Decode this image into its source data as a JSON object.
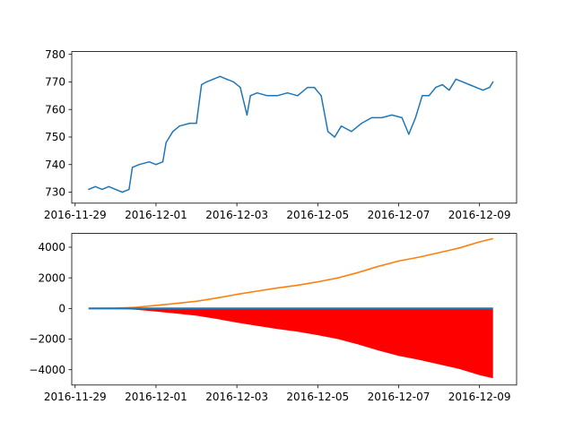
{
  "chart_data": [
    {
      "type": "line",
      "title": "",
      "xlabel": "",
      "ylabel": "",
      "x_start": "2016-11-29T08:00",
      "x_end": "2016-12-09T08:00",
      "xlim": [
        "2016-11-28T22:00",
        "2016-12-09T22:00"
      ],
      "ylim": [
        726,
        781
      ],
      "x_ticks": [
        "2016-11-29",
        "2016-12-01",
        "2016-12-03",
        "2016-12-05",
        "2016-12-07",
        "2016-12-09"
      ],
      "y_ticks": [
        730,
        740,
        750,
        760,
        770,
        780
      ],
      "grid": false,
      "legend": "none",
      "series": [
        {
          "color": "#1f77b4",
          "x": [
            "2016-11-29T08:00",
            "2016-11-29T12:00",
            "2016-11-29T16:00",
            "2016-11-29T20:00",
            "2016-11-30T00:00",
            "2016-11-30T04:00",
            "2016-11-30T08:00",
            "2016-11-30T10:00",
            "2016-11-30T14:00",
            "2016-11-30T20:00",
            "2016-12-01T00:00",
            "2016-12-01T04:00",
            "2016-12-01T06:00",
            "2016-12-01T10:00",
            "2016-12-01T14:00",
            "2016-12-01T20:00",
            "2016-12-02T00:00",
            "2016-12-02T03:00",
            "2016-12-02T06:00",
            "2016-12-02T10:00",
            "2016-12-02T14:00",
            "2016-12-02T18:00",
            "2016-12-02T22:00",
            "2016-12-03T02:00",
            "2016-12-03T06:00",
            "2016-12-03T08:00",
            "2016-12-03T12:00",
            "2016-12-03T18:00",
            "2016-12-04T00:00",
            "2016-12-04T06:00",
            "2016-12-04T12:00",
            "2016-12-04T18:00",
            "2016-12-04T22:00",
            "2016-12-05T02:00",
            "2016-12-05T06:00",
            "2016-12-05T10:00",
            "2016-12-05T14:00",
            "2016-12-05T20:00",
            "2016-12-06T02:00",
            "2016-12-06T08:00",
            "2016-12-06T14:00",
            "2016-12-06T20:00",
            "2016-12-07T02:00",
            "2016-12-07T06:00",
            "2016-12-07T10:00",
            "2016-12-07T14:00",
            "2016-12-07T18:00",
            "2016-12-07T22:00",
            "2016-12-08T02:00",
            "2016-12-08T06:00",
            "2016-12-08T10:00",
            "2016-12-08T14:00",
            "2016-12-08T18:00",
            "2016-12-08T22:00",
            "2016-12-09T02:00",
            "2016-12-09T06:00",
            "2016-12-09T08:00"
          ],
          "y": [
            731,
            732,
            731,
            732,
            731,
            730,
            731,
            739,
            740,
            741,
            740,
            741,
            748,
            752,
            754,
            755,
            755,
            769,
            770,
            771,
            772,
            771,
            770,
            768,
            758,
            765,
            766,
            765,
            765,
            766,
            765,
            768,
            768,
            765,
            752,
            750,
            754,
            752,
            755,
            757,
            757,
            758,
            757,
            751,
            757,
            765,
            765,
            768,
            769,
            767,
            771,
            770,
            769,
            768,
            767,
            768,
            770
          ]
        }
      ]
    },
    {
      "type": "area",
      "title": "",
      "xlabel": "",
      "ylabel": "",
      "xlim": [
        "2016-11-28T22:00",
        "2016-12-09T22:00"
      ],
      "ylim": [
        -5000,
        4900
      ],
      "x_ticks": [
        "2016-11-29",
        "2016-12-01",
        "2016-12-03",
        "2016-12-05",
        "2016-12-07",
        "2016-12-09"
      ],
      "y_ticks": [
        -4000,
        -2000,
        0,
        2000,
        4000
      ],
      "grid": false,
      "legend": "none",
      "x": [
        "2016-11-29T08:00",
        "2016-11-30T00:00",
        "2016-11-30T12:00",
        "2016-12-01T00:00",
        "2016-12-01T12:00",
        "2016-12-02T00:00",
        "2016-12-02T12:00",
        "2016-12-03T00:00",
        "2016-12-03T12:00",
        "2016-12-04T00:00",
        "2016-12-04T12:00",
        "2016-12-05T00:00",
        "2016-12-05T12:00",
        "2016-12-06T00:00",
        "2016-12-06T12:00",
        "2016-12-07T00:00",
        "2016-12-07T12:00",
        "2016-12-08T00:00",
        "2016-12-08T12:00",
        "2016-12-09T00:00",
        "2016-12-09T08:00"
      ],
      "series": [
        {
          "color": "#ff7f0e",
          "kind": "line",
          "values": [
            0,
            20,
            80,
            200,
            330,
            470,
            680,
            920,
            1130,
            1340,
            1520,
            1740,
            2000,
            2350,
            2750,
            3100,
            3350,
            3650,
            3950,
            4350,
            4560
          ]
        },
        {
          "color": "#1f77b4",
          "kind": "line",
          "values": [
            0,
            0,
            0,
            0,
            0,
            0,
            0,
            0,
            0,
            0,
            0,
            0,
            0,
            0,
            0,
            0,
            0,
            0,
            0,
            0,
            0
          ]
        },
        {
          "color": "#ff0000",
          "kind": "fill",
          "values": [
            0,
            -20,
            -80,
            -200,
            -330,
            -470,
            -680,
            -920,
            -1130,
            -1340,
            -1520,
            -1740,
            -2000,
            -2350,
            -2750,
            -3100,
            -3350,
            -3650,
            -3950,
            -4350,
            -4560
          ]
        }
      ]
    }
  ]
}
